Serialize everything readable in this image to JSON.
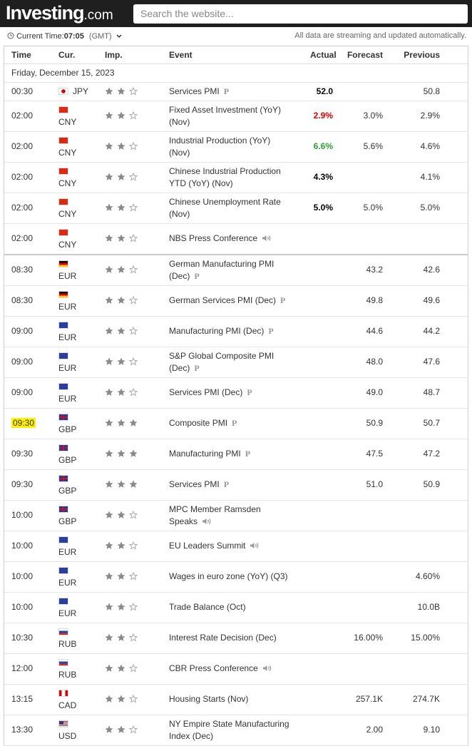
{
  "header": {
    "logo": "Investing",
    "logo_suffix": ".com",
    "search_placeholder": "Search the website..."
  },
  "toolbar": {
    "current_time_label": "Current Time:",
    "current_time": "07:05",
    "timezone": "(GMT)",
    "notice": "All data are streaming and updated automatically."
  },
  "table": {
    "columns": [
      "Time",
      "Cur.",
      "Imp.",
      "Event",
      "Actual",
      "Forecast",
      "Previous"
    ],
    "date": "Friday, December 15, 2023",
    "rows": [
      {
        "time": "00:30",
        "currency": "JPY",
        "flag": "jp",
        "importance": 2,
        "event": "Services PMI",
        "preliminary": true,
        "actual": "52.0",
        "previous": "50.8"
      },
      {
        "time": "02:00",
        "currency": "CNY",
        "flag": "cn",
        "importance": 2,
        "event": "Fixed Asset Investment (YoY) (Nov)",
        "actual": "2.9%",
        "actual_color": "#e00000",
        "forecast": "3.0%",
        "previous": "2.9%"
      },
      {
        "time": "02:00",
        "currency": "CNY",
        "flag": "cn",
        "importance": 2,
        "event": "Industrial Production (YoY) (Nov)",
        "actual": "6.6%",
        "actual_color": "#2da12d",
        "forecast": "5.6%",
        "previous": "4.6%"
      },
      {
        "time": "02:00",
        "currency": "CNY",
        "flag": "cn",
        "importance": 2,
        "event": "Chinese Industrial Production YTD (YoY) (Nov)",
        "actual": "4.3%",
        "previous": "4.1%"
      },
      {
        "time": "02:00",
        "currency": "CNY",
        "flag": "cn",
        "importance": 2,
        "event": "Chinese Unemployment Rate (Nov)",
        "actual": "5.0%",
        "forecast": "5.0%",
        "previous": "5.0%"
      },
      {
        "time": "02:00",
        "currency": "CNY",
        "flag": "cn",
        "importance": 2,
        "event": "NBS Press Conference",
        "speech": true
      },
      {
        "time": "08:30",
        "currency": "EUR",
        "flag": "de",
        "importance": 2,
        "event": "German Manufacturing PMI (Dec)",
        "preliminary": true,
        "forecast": "43.2",
        "previous": "42.6",
        "group_start": true
      },
      {
        "time": "08:30",
        "currency": "EUR",
        "flag": "de",
        "importance": 2,
        "event": "German Services PMI (Dec)",
        "preliminary": true,
        "forecast": "49.8",
        "previous": "49.6"
      },
      {
        "time": "09:00",
        "currency": "EUR",
        "flag": "eu",
        "importance": 2,
        "event": "Manufacturing PMI (Dec)",
        "preliminary": true,
        "forecast": "44.6",
        "previous": "44.2"
      },
      {
        "time": "09:00",
        "currency": "EUR",
        "flag": "eu",
        "importance": 2,
        "event": "S&P Global Composite PMI (Dec)",
        "preliminary": true,
        "forecast": "48.0",
        "previous": "47.6"
      },
      {
        "time": "09:00",
        "currency": "EUR",
        "flag": "eu",
        "importance": 2,
        "event": "Services PMI (Dec)",
        "preliminary": true,
        "forecast": "49.0",
        "previous": "48.7"
      },
      {
        "time": "09:30",
        "currency": "GBP",
        "flag": "gb",
        "importance": 3,
        "event": "Composite PMI",
        "preliminary": true,
        "forecast": "50.9",
        "previous": "50.7",
        "highlight": true
      },
      {
        "time": "09:30",
        "currency": "GBP",
        "flag": "gb",
        "importance": 3,
        "event": "Manufacturing PMI",
        "preliminary": true,
        "forecast": "47.5",
        "previous": "47.2"
      },
      {
        "time": "09:30",
        "currency": "GBP",
        "flag": "gb",
        "importance": 3,
        "event": "Services PMI",
        "preliminary": true,
        "forecast": "51.0",
        "previous": "50.9"
      },
      {
        "time": "10:00",
        "currency": "GBP",
        "flag": "gb",
        "importance": 2,
        "event": "MPC Member Ramsden Speaks",
        "speech": true
      },
      {
        "time": "10:00",
        "currency": "EUR",
        "flag": "eu",
        "importance": 2,
        "event": "EU Leaders Summit",
        "speech": true
      },
      {
        "time": "10:00",
        "currency": "EUR",
        "flag": "eu",
        "importance": 2,
        "event": "Wages in euro zone (YoY) (Q3)",
        "previous": "4.60%"
      },
      {
        "time": "10:00",
        "currency": "EUR",
        "flag": "eu",
        "importance": 2,
        "event": "Trade Balance (Oct)",
        "previous": "10.0B"
      },
      {
        "time": "10:30",
        "currency": "RUB",
        "flag": "ru",
        "importance": 2,
        "event": "Interest Rate Decision (Dec)",
        "forecast": "16.00%",
        "previous": "15.00%"
      },
      {
        "time": "12:00",
        "currency": "RUB",
        "flag": "ru",
        "importance": 2,
        "event": "CBR Press Conference",
        "speech": true
      },
      {
        "time": "13:15",
        "currency": "CAD",
        "flag": "ca",
        "importance": 2,
        "event": "Housing Starts (Nov)",
        "forecast": "257.1K",
        "previous": "274.7K"
      },
      {
        "time": "13:30",
        "currency": "USD",
        "flag": "us",
        "importance": 2,
        "event": "NY Empire State Manufacturing Index (Dec)",
        "forecast": "2.00",
        "previous": "9.10"
      }
    ]
  }
}
